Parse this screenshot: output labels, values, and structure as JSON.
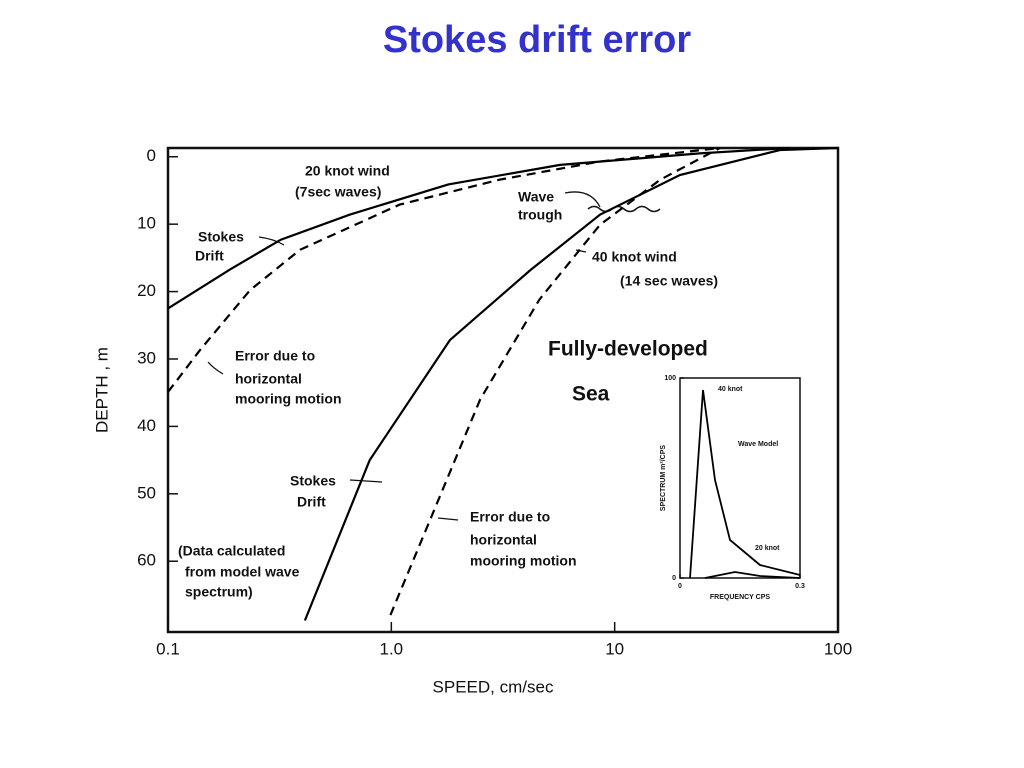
{
  "title": "Stokes drift error",
  "chart_data": [
    {
      "type": "line",
      "xlabel": "SPEED, cm/sec",
      "ylabel": "DEPTH , m",
      "xscale": "log",
      "xlim": [
        0.1,
        100
      ],
      "xticks": [
        0.1,
        {
          "value": 1,
          "label": "1.0"
        },
        10,
        100
      ],
      "ylim": [
        -1.3,
        70.5
      ],
      "y_reversed": true,
      "yticks": [
        0,
        10,
        20,
        30,
        40,
        50,
        60
      ],
      "series": [
        {
          "name": "Stokes Drift (20 knot wind)",
          "color": "#000000",
          "style": "solid",
          "x": [
            0.1,
            0.19,
            0.32,
            0.65,
            1.8,
            5.7,
            24,
            60
          ],
          "values": [
            22.5,
            16.7,
            12.3,
            8.6,
            4.1,
            1.2,
            -0.5,
            -1.3
          ]
        },
        {
          "name": "Error due to horizontal mooring motion (20 knot wind)",
          "color": "#000000",
          "style": "dashed",
          "x": [
            0.1,
            0.139,
            0.233,
            0.39,
            1.09,
            3.05,
            8.6,
            29.6
          ],
          "values": [
            34.9,
            28.7,
            19.8,
            13.8,
            7.1,
            3.4,
            0.7,
            -1.3
          ]
        },
        {
          "name": "Stokes Drift (40 knot wind)",
          "color": "#000000",
          "style": "solid",
          "x": [
            0.41,
            0.8,
            1.83,
            4.2,
            8.6,
            19.6,
            55,
            100
          ],
          "values": [
            68.8,
            45,
            27.2,
            16.8,
            8.6,
            2.7,
            -1,
            -1.3
          ]
        },
        {
          "name": "Error due to horizontal mooring motion (40 knot wind)",
          "color": "#000000",
          "style": "dashed",
          "x": [
            0.99,
            1.49,
            2.5,
            4.6,
            8.6,
            16,
            29.6
          ],
          "values": [
            68,
            53.9,
            36,
            21.2,
            10.1,
            3.4,
            -1.3
          ]
        }
      ],
      "annotations": [
        "20 knot wind",
        "(7sec waves)",
        "Stokes",
        "Drift",
        "Wave",
        "trough",
        "40 knot wind",
        "(14 sec waves)",
        "Fully-developed",
        "Sea",
        "Error due to",
        "horizontal",
        "mooring motion",
        "Stokes",
        "Drift",
        "Error due to",
        "horizontal",
        "mooring motion",
        "(Data calculated",
        "from model wave",
        "spectrum)"
      ]
    },
    {
      "type": "line",
      "xlabel": "FREQUENCY CPS",
      "ylabel": "SPECTRUM m²/CPS",
      "xlim": [
        0,
        0.3
      ],
      "xticks": [
        0,
        0.3
      ],
      "ylim": [
        0,
        100
      ],
      "yticks": [
        0,
        100
      ],
      "series": [
        {
          "name": "40 knot",
          "color": "#000000",
          "style": "solid",
          "x": [
            0.025,
            0.0575,
            0.0875,
            0.125,
            0.2,
            0.3
          ],
          "values": [
            0,
            94,
            49,
            19,
            6.5,
            1.5
          ]
        },
        {
          "name": "20 knot",
          "color": "#000000",
          "style": "solid",
          "x": [
            0.0625,
            0.1375,
            0.2,
            0.3
          ],
          "values": [
            0,
            3,
            1,
            0
          ]
        }
      ],
      "annotations": [
        "Wave Model"
      ]
    }
  ]
}
